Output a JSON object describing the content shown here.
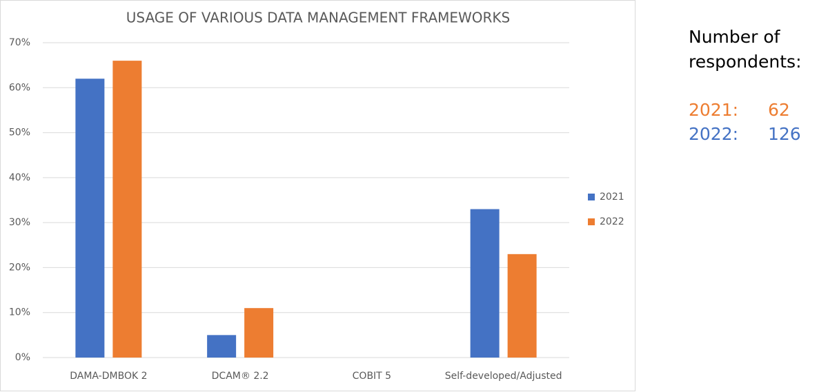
{
  "chart_data": {
    "type": "bar",
    "title": "USAGE OF VARIOUS DATA MANAGEMENT FRAMEWORKS",
    "categories": [
      "DAMA-DMBOK 2",
      "DCAM® 2.2",
      "COBIT 5",
      "Self-developed/Adjusted"
    ],
    "series": [
      {
        "name": "2021",
        "color": "#4472c4",
        "values": [
          62,
          5,
          0,
          33
        ]
      },
      {
        "name": "2022",
        "color": "#ed7d31",
        "values": [
          66,
          11,
          0,
          23
        ]
      }
    ],
    "ylim": [
      0,
      70
    ],
    "yticks": [
      {
        "value": 0,
        "label": "0%"
      },
      {
        "value": 10,
        "label": "10%"
      },
      {
        "value": 20,
        "label": "20%"
      },
      {
        "value": 30,
        "label": "30%"
      },
      {
        "value": 40,
        "label": "40%"
      },
      {
        "value": 50,
        "label": "50%"
      },
      {
        "value": 60,
        "label": "60%"
      },
      {
        "value": 70,
        "label": "70%"
      }
    ],
    "grid": true,
    "legend": "right"
  },
  "annotation": {
    "title": "Number of respondents:",
    "items": [
      {
        "label": "2021:",
        "value": 62,
        "color": "#ed7d31"
      },
      {
        "label": "2022:",
        "value": 126,
        "color": "#4472c4"
      }
    ]
  }
}
